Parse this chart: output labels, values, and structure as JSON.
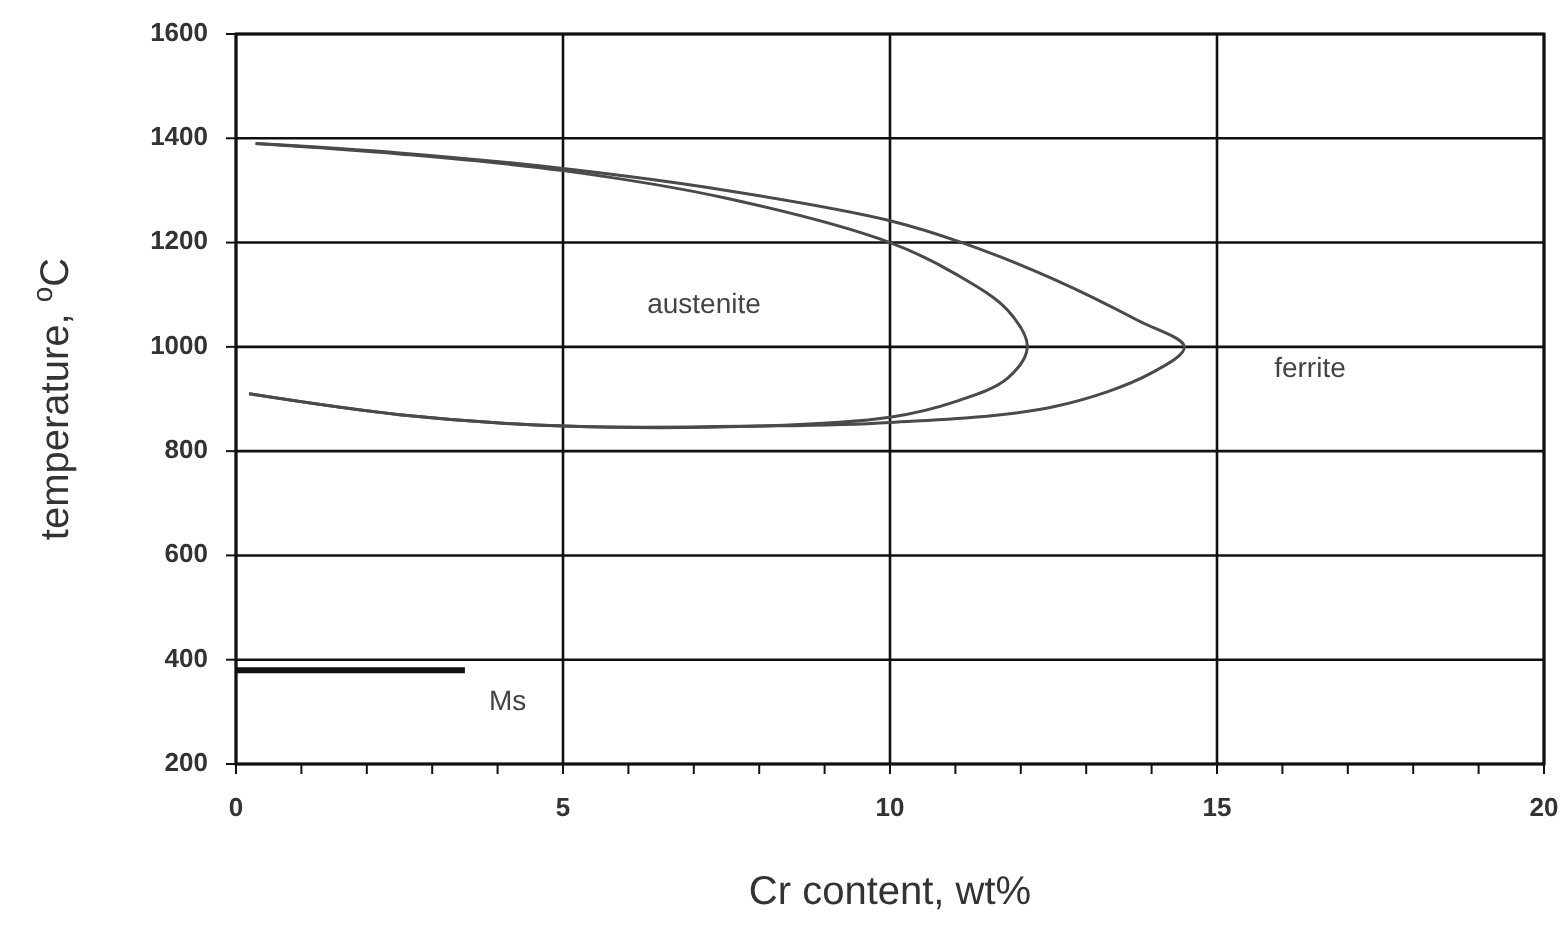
{
  "chart_data": {
    "type": "line",
    "xlabel": "Cr content, wt%",
    "ylabel": "temperature, $^{o}$C",
    "xlim": [
      0,
      20
    ],
    "ylim": [
      200,
      1600
    ],
    "xticks": [
      0,
      {
        "value": 1,
        "label": null
      },
      {
        "value": 2,
        "label": null
      },
      {
        "value": 3,
        "label": null
      },
      {
        "value": 4,
        "label": null
      },
      5,
      {
        "value": 6,
        "label": null
      },
      {
        "value": 7,
        "label": null
      },
      {
        "value": 8,
        "label": null
      },
      {
        "value": 9,
        "label": null
      },
      10,
      {
        "value": 11,
        "label": null
      },
      {
        "value": 12,
        "label": null
      },
      {
        "value": 13,
        "label": null
      },
      {
        "value": 14,
        "label": null
      },
      15,
      {
        "value": 16,
        "label": null
      },
      {
        "value": 17,
        "label": null
      },
      {
        "value": 18,
        "label": null
      },
      {
        "value": 19,
        "label": null
      },
      20
    ],
    "yticks": [
      200,
      400,
      600,
      800,
      1000,
      1200,
      1400,
      1600
    ],
    "grid": true,
    "marker": "none",
    "line_style": "solid",
    "series": [
      {
        "color": "#4a4a4a",
        "x": [
          0.3,
          2.5,
          5,
          7.5,
          10,
          11,
          11.8,
          12.1,
          11.8,
          11,
          10,
          8,
          5,
          2.5,
          0.2
        ],
        "values": [
          1390,
          1370,
          1338,
          1285,
          1200,
          1140,
          1070,
          1000,
          940,
          895,
          865,
          848,
          848,
          870,
          910
        ]
      },
      {
        "color": "#4a4a4a",
        "x": [
          0.3,
          2.5,
          5,
          7.5,
          10,
          11.1,
          12.5,
          13.8,
          14.5,
          14,
          12.5,
          10,
          8,
          5,
          2.5,
          0.2
        ],
        "values": [
          1390,
          1372,
          1342,
          1300,
          1242,
          1200,
          1130,
          1050,
          1000,
          950,
          885,
          855,
          848,
          848,
          870,
          910
        ]
      },
      {
        "name": "Ms",
        "color": "#111111",
        "x": [
          0,
          3.5
        ],
        "values": [
          380,
          380
        ]
      }
    ],
    "annotations": [
      "austenite",
      "ferrite"
    ]
  }
}
